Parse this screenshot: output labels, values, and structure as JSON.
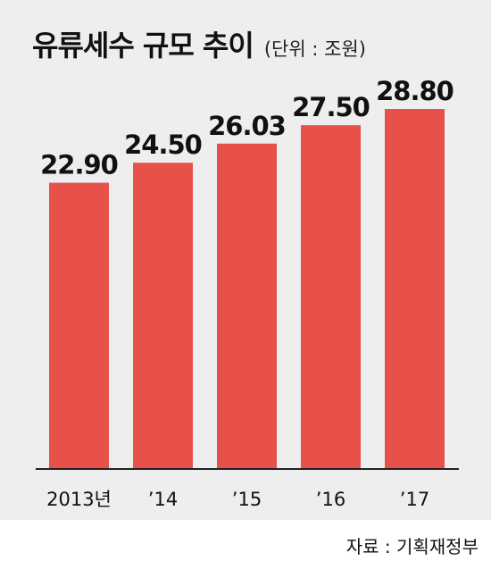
{
  "title": "유류세수 규모 추이",
  "unit_note": "(단위 : 조원)",
  "source": "자료 : 기획재정부",
  "colors": {
    "bar": "#e8504a",
    "panel": "#eeeeee",
    "text": "#111111"
  },
  "chart_data": {
    "type": "bar",
    "title": "유류세수 규모 추이",
    "xlabel": "",
    "ylabel": "",
    "categories": [
      "2013년",
      "’14",
      "’15",
      "’16",
      "’17"
    ],
    "values": [
      22.9,
      24.5,
      26.03,
      27.5,
      28.8
    ],
    "value_labels": [
      "22.90",
      "24.50",
      "26.03",
      "27.50",
      "28.80"
    ],
    "grid": false,
    "legend": "none"
  }
}
